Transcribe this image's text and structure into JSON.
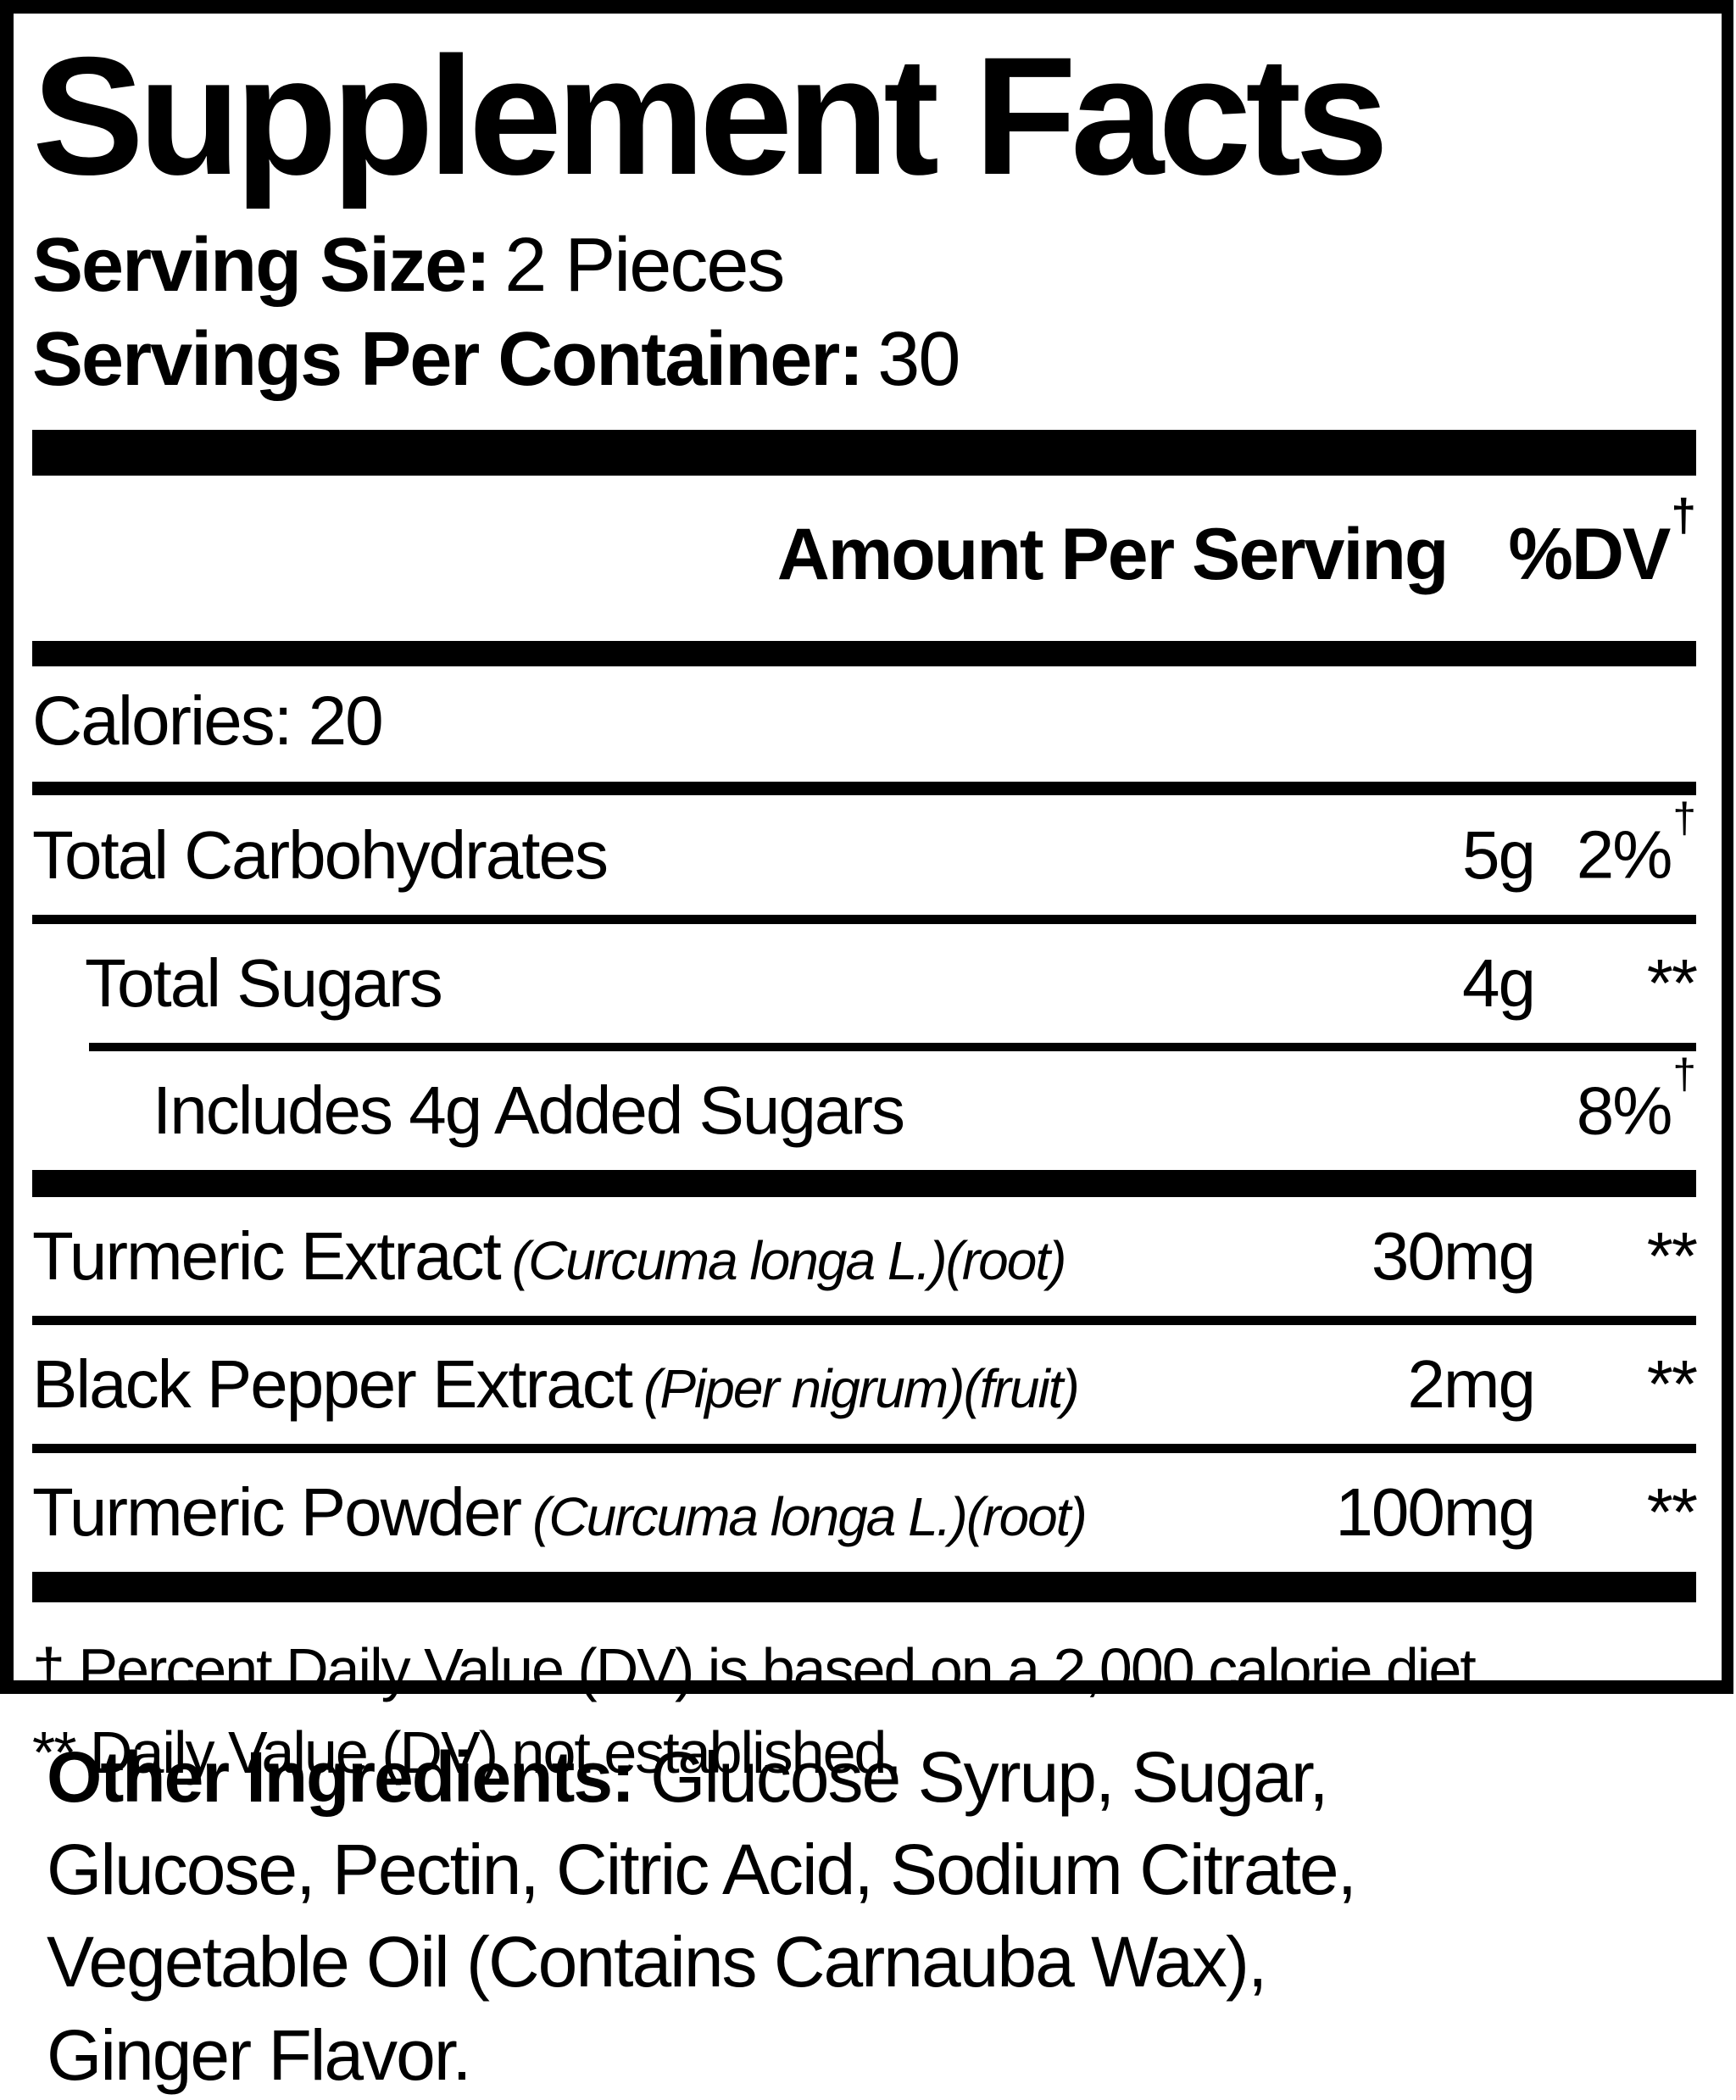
{
  "colors": {
    "text": "#000000",
    "background": "#ffffff"
  },
  "panel": {
    "title": "Supplement Facts",
    "serving_size": {
      "label": "Serving Size:",
      "value": "2 Pieces"
    },
    "servings_per_container": {
      "label": "Servings Per Container:",
      "value": "30"
    },
    "header": {
      "amount_label": "Amount Per Serving",
      "dv_label": "%DV",
      "dagger": "†"
    },
    "calories": {
      "label": "Calories:",
      "value": "20"
    },
    "nutrients": [
      {
        "name": "Total Carbohydrates",
        "amount": "5g",
        "dv": "2%",
        "dv_sup": "†"
      },
      {
        "name": "Total Sugars",
        "amount": "4g",
        "dv": "**"
      },
      {
        "name": "Includes 4g Added Sugars",
        "amount": "",
        "dv": "8%",
        "dv_sup": "†"
      }
    ],
    "botanicals": [
      {
        "name": "Turmeric Extract",
        "latin": "(Curcuma longa L.)(root)",
        "amount": "30mg",
        "dv": "**"
      },
      {
        "name": "Black Pepper Extract",
        "latin": "(Piper nigrum)(fruit)",
        "amount": "2mg",
        "dv": "**"
      },
      {
        "name": "Turmeric Powder",
        "latin": "(Curcuma longa L.)(root)",
        "amount": "100mg",
        "dv": "**"
      }
    ],
    "footnotes": [
      "† Percent Daily Value (DV) is based on a 2,000 calorie diet.",
      "** Daily Value (DV) not established."
    ]
  },
  "other_ingredients": {
    "label": "Other Ingredients:",
    "lines": [
      "Glucose Syrup, Sugar,",
      "Glucose, Pectin, Citric Acid, Sodium Citrate,",
      "Vegetable Oil (Contains Carnauba Wax),",
      "Ginger Flavor."
    ]
  }
}
